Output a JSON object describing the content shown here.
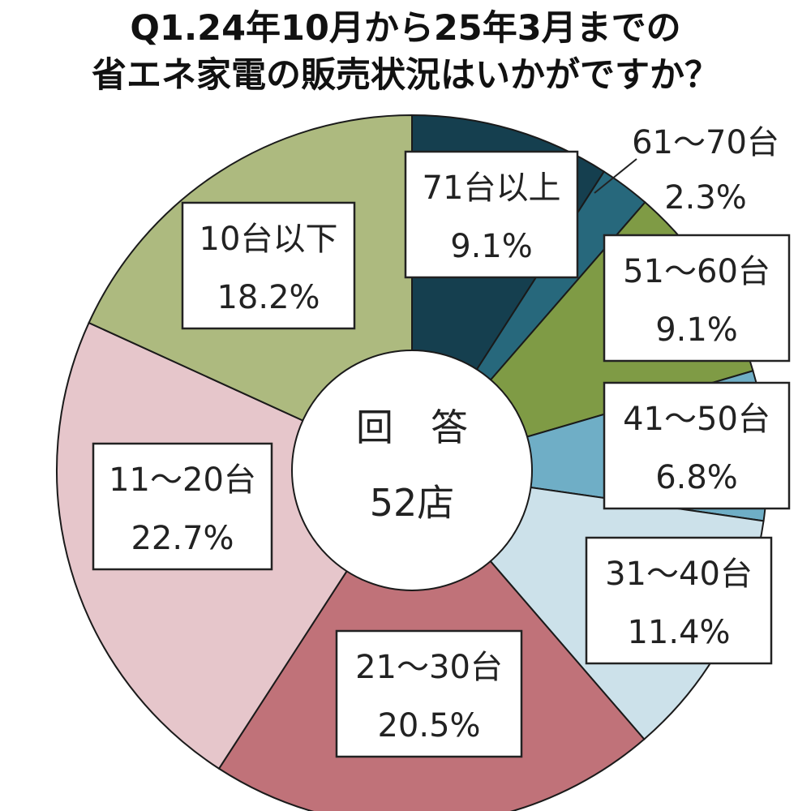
{
  "chart_data": {
    "type": "pie",
    "title_lines": [
      "Q1.24年10月から25年3月までの",
      "省エネ家電の販売状況はいかがですか？"
    ],
    "center_label": {
      "line1": "回　答",
      "line2": "52店"
    },
    "slices": [
      {
        "label": "71台以上",
        "value": 9.1,
        "percent_label": "9.1%",
        "color": "#153f4f"
      },
      {
        "label": "61～70台",
        "value": 2.3,
        "percent_label": "2.3%",
        "color": "#27687c"
      },
      {
        "label": "51～60台",
        "value": 9.1,
        "percent_label": "9.1%",
        "color": "#7f9b45"
      },
      {
        "label": "41～50台",
        "value": 6.8,
        "percent_label": "6.8%",
        "color": "#6faec6"
      },
      {
        "label": "31～40台",
        "value": 11.4,
        "percent_label": "11.4%",
        "color": "#cce1ea"
      },
      {
        "label": "21～30台",
        "value": 20.5,
        "percent_label": "20.5%",
        "color": "#c07279"
      },
      {
        "label": "11～20台",
        "value": 22.7,
        "percent_label": "22.7%",
        "color": "#e6c6cb"
      },
      {
        "label": "10台以下",
        "value": 18.2,
        "percent_label": "18.2%",
        "color": "#adba7f"
      }
    ]
  }
}
